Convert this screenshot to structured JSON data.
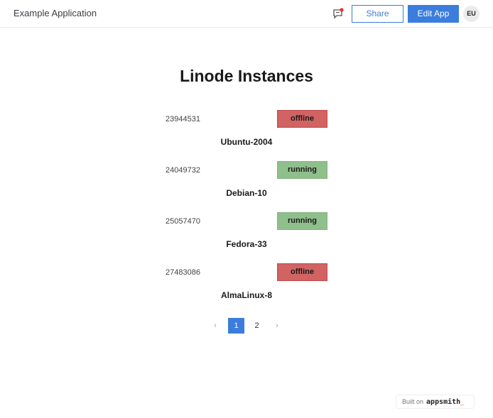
{
  "header": {
    "app_title": "Example Application",
    "share_label": "Share",
    "edit_label": "Edit App",
    "avatar_initials": "EU",
    "comment_icon": "comment-icon"
  },
  "main": {
    "title": "Linode Instances",
    "instances": [
      {
        "id": "23944531",
        "status": "offline",
        "label": "Ubuntu-2004"
      },
      {
        "id": "24049732",
        "status": "running",
        "label": "Debian-10"
      },
      {
        "id": "25057470",
        "status": "running",
        "label": "Fedora-33"
      },
      {
        "id": "27483086",
        "status": "offline",
        "label": "AlmaLinux-8"
      }
    ],
    "pagination": {
      "prev": "‹",
      "pages": [
        "1",
        "2"
      ],
      "current": "1",
      "next": "›"
    }
  },
  "footer": {
    "built_on": "Built on",
    "brand": "appsmith",
    "brand_suffix": "_"
  },
  "colors": {
    "accent": "#3b7ddd",
    "offline": "#d16363",
    "running": "#8fbf8b"
  }
}
